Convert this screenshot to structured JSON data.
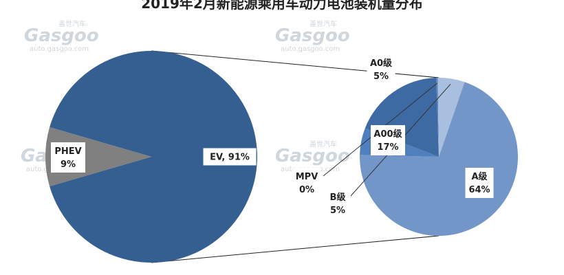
{
  "title": "2019年2月新能源乘用车动力电池装机量分布",
  "watermark": {
    "brand_cn": "盖世汽车",
    "brand": "Gasgoo",
    "url": "auto.gasgoo.com"
  },
  "chart_data": [
    {
      "type": "pie",
      "slices": [
        {
          "label": "EV, 91%",
          "value": 91,
          "color": "#355f91"
        },
        {
          "label": "PHEV\n9%",
          "value": 9,
          "color": "#808080"
        }
      ]
    },
    {
      "type": "pie",
      "slices": [
        {
          "label": "A级\n64%",
          "value": 64,
          "color": "#7396c8"
        },
        {
          "label": "A0级\n5%",
          "value": 5,
          "color": "#4f7fbd"
        },
        {
          "label": "A00级\n17%",
          "value": 17,
          "color": "#3e6aa3"
        },
        {
          "label": "MPV\n0%",
          "value": 0.3,
          "color": "#5b85bd"
        },
        {
          "label": "B级\n5%",
          "value": 5,
          "color": "#a9bfdf"
        }
      ]
    }
  ]
}
